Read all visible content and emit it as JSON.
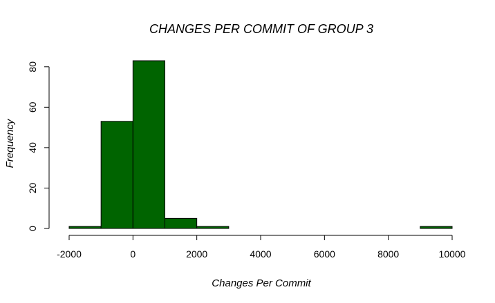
{
  "chart_data": {
    "type": "bar",
    "title": "CHANGES PER COMMIT OF GROUP 3",
    "xlabel": "Changes Per Commit",
    "ylabel": "Frequency",
    "bins": [
      {
        "from": -2000,
        "to": -1000,
        "value": 1
      },
      {
        "from": -1000,
        "to": 0,
        "value": 53
      },
      {
        "from": 0,
        "to": 1000,
        "value": 83
      },
      {
        "from": 1000,
        "to": 2000,
        "value": 5
      },
      {
        "from": 2000,
        "to": 3000,
        "value": 1
      },
      {
        "from": 3000,
        "to": 4000,
        "value": 0
      },
      {
        "from": 4000,
        "to": 5000,
        "value": 0
      },
      {
        "from": 5000,
        "to": 6000,
        "value": 0
      },
      {
        "from": 6000,
        "to": 7000,
        "value": 0
      },
      {
        "from": 7000,
        "to": 8000,
        "value": 0
      },
      {
        "from": 8000,
        "to": 9000,
        "value": 0
      },
      {
        "from": 9000,
        "to": 10000,
        "value": 1
      }
    ],
    "xlim": [
      -2000,
      10000
    ],
    "ylim": [
      0,
      83
    ],
    "xticks": [
      -2000,
      0,
      2000,
      4000,
      6000,
      8000,
      10000
    ],
    "xtick_labels": [
      "-2000",
      "0",
      "2000",
      "4000",
      "6000",
      "8000",
      "10000"
    ],
    "yticks": [
      0,
      20,
      40,
      60,
      80
    ],
    "ytick_labels": [
      "0",
      "20",
      "40",
      "60",
      "80"
    ],
    "bar_color": "#006400",
    "grid": false,
    "legend": false
  }
}
